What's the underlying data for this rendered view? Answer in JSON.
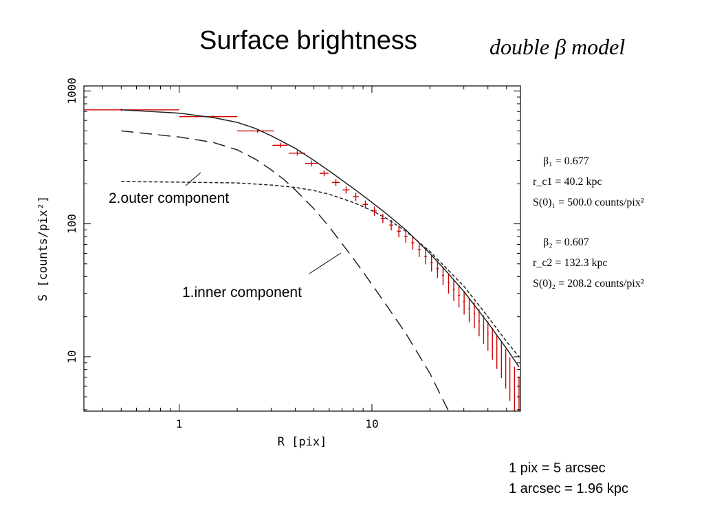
{
  "header": {
    "title": "Surface brightness",
    "model": "double β model"
  },
  "chart_data": {
    "type": "line",
    "xlabel": "R [pix]",
    "ylabel": "S [counts/pix²]",
    "xscale": "log",
    "yscale": "log",
    "xlim": [
      0.32,
      59
    ],
    "ylim": [
      3.9,
      1090
    ],
    "xticks": [
      1,
      10
    ],
    "yticks": [
      10,
      100,
      1000
    ],
    "grid": false,
    "observed": {
      "x": [
        0.5,
        1.5,
        2.55,
        3.35,
        4.1,
        4.85,
        5.65,
        6.5,
        7.35,
        8.25,
        9.25,
        10.3,
        11.4,
        12.6,
        13.8,
        15.0,
        16.3,
        17.6,
        19.0,
        20.4,
        21.9,
        23.4,
        25.0,
        26.6,
        28.3,
        30.1,
        32.0,
        34.0,
        36.0,
        38.0,
        40.0,
        42.2,
        44.5,
        47.0,
        49.5,
        52.0,
        55.0,
        58.0
      ],
      "y": [
        720,
        640,
        500,
        390,
        340,
        285,
        240,
        205,
        180,
        160,
        140,
        125,
        110,
        98,
        88,
        80,
        72,
        64,
        57,
        51,
        46,
        41,
        36,
        32,
        29,
        26,
        23,
        21,
        18.5,
        16.5,
        14.8,
        13,
        11.4,
        10,
        8.6,
        7.3,
        6,
        4.9
      ],
      "xerr": [
        0.5,
        0.5,
        0.55,
        0.3,
        0.4,
        0.35,
        0.3,
        0.3,
        0.3,
        0.3,
        0.3,
        0.3,
        0.3,
        0.3,
        0.3,
        0.3,
        0.3,
        0.3,
        0.3,
        0.3,
        0.3,
        0.3,
        0.3,
        0.3,
        0.3,
        0.3,
        0.3,
        0.3,
        0.3,
        0.3,
        0.3,
        0.3,
        0.3,
        0.3,
        0.3,
        0.3,
        0.3,
        0.3
      ],
      "yerr_frac": [
        0.02,
        0.02,
        0.03,
        0.04,
        0.04,
        0.05,
        0.05,
        0.06,
        0.06,
        0.07,
        0.07,
        0.08,
        0.08,
        0.09,
        0.1,
        0.1,
        0.11,
        0.12,
        0.13,
        0.14,
        0.15,
        0.16,
        0.17,
        0.18,
        0.19,
        0.2,
        0.21,
        0.22,
        0.23,
        0.24,
        0.25,
        0.27,
        0.29,
        0.31,
        0.33,
        0.36,
        0.4,
        0.45
      ],
      "color": "#cc0000"
    },
    "series": [
      {
        "style": "solid",
        "x": [
          0.5,
          1.0,
          1.5,
          2.0,
          2.5,
          3.0,
          4.0,
          5.0,
          6.0,
          8.0,
          10.0,
          12.0,
          15.0,
          20.0,
          25.0,
          30.0,
          40.0,
          50.0,
          58.0
        ],
        "y": [
          720,
          680,
          630,
          580,
          520,
          460,
          370,
          300,
          250,
          185,
          145,
          118,
          90,
          60,
          42,
          31,
          18,
          11.5,
          8.4
        ]
      },
      {
        "style": "long-dash",
        "label": "1.inner component",
        "x": [
          0.5,
          1.0,
          1.5,
          2.0,
          2.5,
          3.0,
          3.5,
          4.0,
          5.0,
          6.0,
          8.0,
          10.0,
          12.0,
          15.0,
          20.0,
          25.0
        ],
        "y": [
          500,
          450,
          410,
          360,
          305,
          255,
          215,
          180,
          130,
          95,
          55,
          35,
          24,
          15,
          7.5,
          3.9
        ]
      },
      {
        "style": "short-dash",
        "label": "2.outer component",
        "x": [
          0.5,
          1.0,
          2.0,
          3.0,
          4.0,
          5.0,
          6.0,
          8.0,
          10.0,
          12.0,
          15.0,
          20.0,
          30.0,
          40.0,
          50.0,
          58.0
        ],
        "y": [
          208,
          206,
          203,
          196,
          188,
          178,
          167,
          145,
          126,
          109,
          88,
          62,
          34,
          20,
          13,
          10
        ]
      }
    ]
  },
  "parameters": [
    "β₁ = 0.677",
    "r_c1 = 40.2 kpc",
    "S(0)₁ = 500.0 counts/pix²",
    "β₂ = 0.607",
    "r_c2 = 132.3 kpc",
    "S(0)₂ = 208.2 counts/pix²"
  ],
  "notes": [
    "1 pix =  5 arcsec",
    "1 arcsec = 1.96 kpc"
  ]
}
